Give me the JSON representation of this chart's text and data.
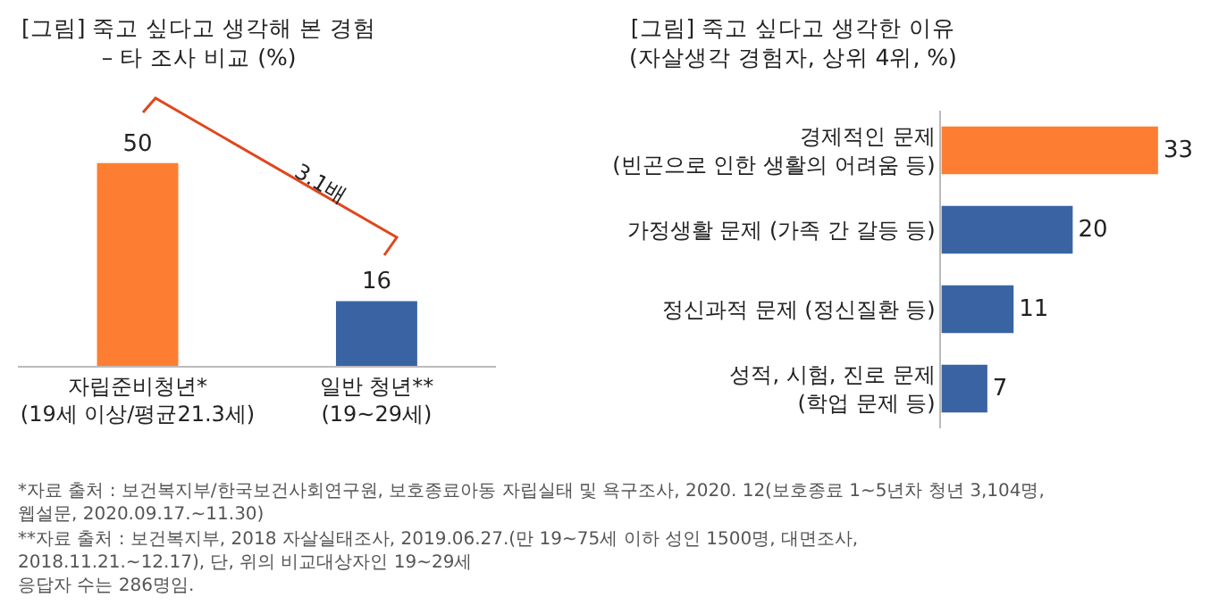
{
  "chart_data": [
    {
      "type": "bar",
      "title": "[그림] 죽고 싶다고 생각해 본 경험\n– 타 조사 비교 (%)",
      "categories": [
        "자립준비청년*\n(19세 이상/평균21.3세)",
        "일반 청년**\n(19~29세)"
      ],
      "values": [
        50,
        16
      ],
      "colors": [
        "#fd7e33",
        "#3a63a3"
      ],
      "data_labels": true,
      "annotations": [
        "3.1배",
        "*자료 출처 : 보건복지부/한국보건사회연구원, 보호종료아동 자립실태 및 욕구조사, 2020. 12(보호종료 1~5년차 청년 3,104명, 웹설문, 2020.09.17.~11.30)",
        "**자료 출처 : 보건복지부, 2018 자살실태조사, 2019.06.27.(만 19~75세 이하 성인 1500명, 대면조사, 2018.11.21.~12.17), 단, 위의 비교대상자인 19~29세\n응답자 수는 286명임."
      ]
    },
    {
      "type": "bar",
      "orientation": "horizontal",
      "title": "[그림] 죽고 싶다고 생각한 이유\n(자살생각 경험자, 상위 4위, %)",
      "categories": [
        "경제적인 문제\n(빈곤으로 인한 생활의 어려움 등)",
        "가정생활 문제 (가족 간 갈등 등)",
        "정신과적 문제 (정신질환 등)",
        "성적, 시험, 진로 문제\n(학업 문제 등)"
      ],
      "values": [
        33,
        20,
        11,
        7
      ],
      "colors": [
        "#fd7e33",
        "#3a63a3",
        "#3a63a3",
        "#3a63a3"
      ],
      "data_labels": true
    }
  ]
}
